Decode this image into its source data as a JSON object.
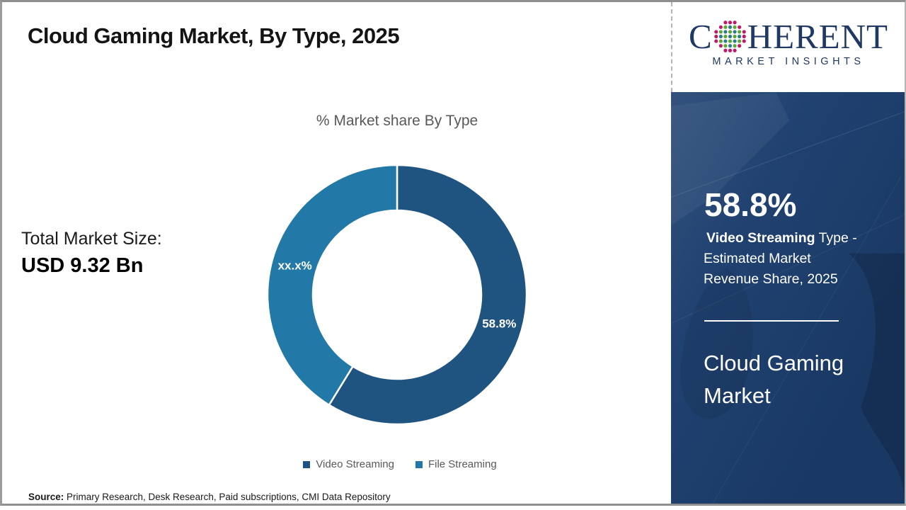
{
  "header": {
    "title": "Cloud Gaming Market, By Type, 2025"
  },
  "brand": {
    "logo_prefix": "C",
    "logo_suffix": "HERENT",
    "logo_subtitle": "MARKET INSIGHTS",
    "navy": "#1f3864",
    "globe_dot_colors": {
      "ring": "#c0196a",
      "teal": "#2b7d8d",
      "green": "#5ea832"
    }
  },
  "stats": {
    "label": "Total Market Size:",
    "value": "USD 9.32 Bn"
  },
  "chart_data": {
    "type": "pie",
    "subtype": "donut",
    "title": "% Market share By Type",
    "labels": [
      "Video Streaming",
      "File Streaming"
    ],
    "values": [
      58.8,
      41.2
    ],
    "displayed_value_labels": [
      "58.8%",
      "xx.x%"
    ],
    "colors": [
      "#1f5481",
      "#2279a7"
    ],
    "legend_position": "bottom",
    "start_angle_deg": 0,
    "inner_radius_ratio": 0.65
  },
  "sidebar": {
    "background": "#1c3e6e",
    "headline_value": "58.8%",
    "headline_line1_bold": "Video Streaming",
    "headline_line1_rest": " Type -",
    "headline_line2": "Estimated Market",
    "headline_line3": "Revenue Share, 2025",
    "product_title": "Cloud Gaming Market"
  },
  "footer": {
    "source_label": "Source:",
    "source_text": " Primary Research, Desk Research, Paid subscriptions, CMI Data Repository"
  }
}
